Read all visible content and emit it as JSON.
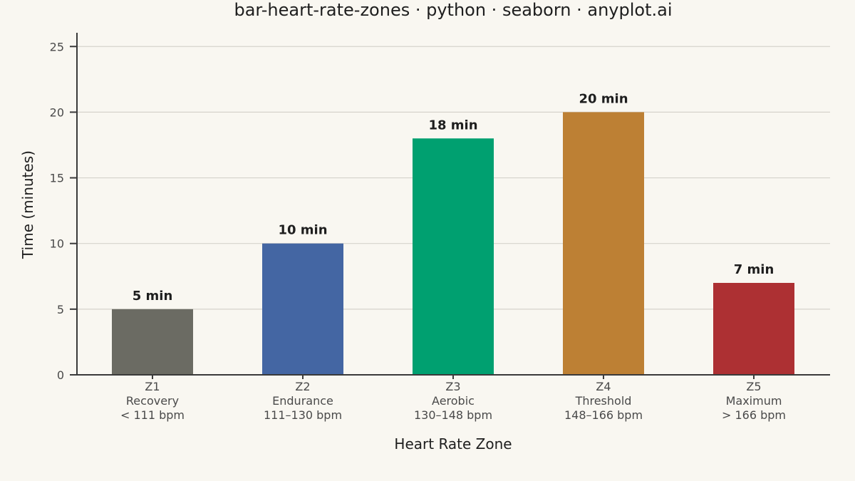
{
  "chart_data": {
    "type": "bar",
    "title": "bar-heart-rate-zones · python · seaborn · anyplot.ai",
    "xlabel": "Heart Rate Zone",
    "ylabel": "Time (minutes)",
    "ylim": [
      0,
      26
    ],
    "yticks": [
      0,
      5,
      10,
      15,
      20,
      25
    ],
    "grid": true,
    "categories": [
      {
        "zone": "Z1",
        "name": "Recovery",
        "range": "< 111 bpm"
      },
      {
        "zone": "Z2",
        "name": "Endurance",
        "range": "111–130 bpm"
      },
      {
        "zone": "Z3",
        "name": "Aerobic",
        "range": "130–148 bpm"
      },
      {
        "zone": "Z4",
        "name": "Threshold",
        "range": "148–166 bpm"
      },
      {
        "zone": "Z5",
        "name": "Maximum",
        "range": "> 166 bpm"
      }
    ],
    "values": [
      5,
      10,
      18,
      20,
      7
    ],
    "data_labels": [
      "5 min",
      "10 min",
      "18 min",
      "20 min",
      "7 min"
    ],
    "colors": [
      "#6b6b63",
      "#4466a3",
      "#00a070",
      "#bd8034",
      "#ad3033"
    ]
  }
}
